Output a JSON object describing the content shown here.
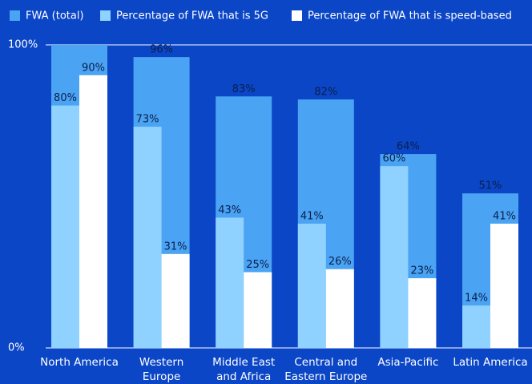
{
  "chart_data": {
    "type": "bar",
    "categories": [
      "North America",
      "Western Europe",
      "Middle East and Africa",
      "Central and Eastern Europe",
      "Asia-Pacific",
      "Latin America"
    ],
    "series": [
      {
        "name": "FWA (total)",
        "color": "#4aa3f3",
        "values": [
          100,
          96,
          83,
          82,
          64,
          51
        ],
        "value_labels": [
          null,
          "96%",
          "83%",
          "82%",
          "64%",
          "51%"
        ]
      },
      {
        "name": "Percentage of FWA that is 5G",
        "color": "#8fd1ff",
        "values": [
          80,
          73,
          43,
          41,
          60,
          14
        ],
        "value_labels": [
          "80%",
          "73%",
          "43%",
          "41%",
          "60%",
          "14%"
        ]
      },
      {
        "name": "Percentage of FWA that is speed-based",
        "color": "#ffffff",
        "values": [
          90,
          31,
          25,
          26,
          23,
          41
        ],
        "value_labels": [
          "90%",
          "31%",
          "25%",
          "26%",
          "23%",
          "41%"
        ]
      }
    ],
    "ylim": [
      0,
      100
    ],
    "yticks": [
      {
        "value": 0,
        "label": "0%"
      },
      {
        "value": 100,
        "label": "100%"
      }
    ],
    "grid": true
  }
}
